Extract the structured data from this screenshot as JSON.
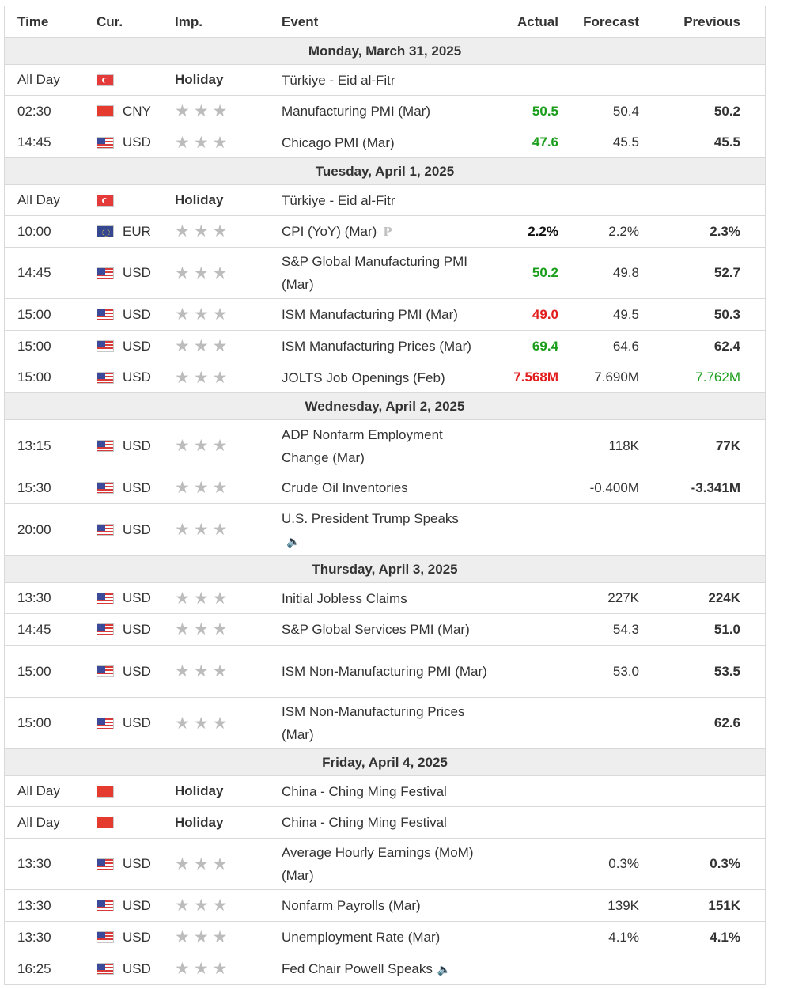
{
  "headers": {
    "time": "Time",
    "cur": "Cur.",
    "imp": "Imp.",
    "event": "Event",
    "actual": "Actual",
    "forecast": "Forecast",
    "previous": "Previous"
  },
  "days": [
    {
      "label": "Monday, March 31, 2025"
    },
    {
      "label": "Tuesday, April 1, 2025"
    },
    {
      "label": "Wednesday, April 2, 2025"
    },
    {
      "label": "Thursday, April 3, 2025"
    },
    {
      "label": "Friday, April 4, 2025"
    }
  ],
  "events": [
    {
      "time": "All Day",
      "flag": "tr",
      "cur": "",
      "holiday": "Holiday",
      "event": "Türkiye - Eid al-Fitr",
      "actual": "",
      "forecast": "",
      "previous": ""
    },
    {
      "time": "02:30",
      "flag": "cn",
      "cur": "CNY",
      "event": "Manufacturing PMI (Mar)",
      "actual": "50.5",
      "actual_color": "green",
      "forecast": "50.4",
      "previous": "50.2"
    },
    {
      "time": "14:45",
      "flag": "us",
      "cur": "USD",
      "event": "Chicago PMI (Mar)",
      "actual": "47.6",
      "actual_color": "green",
      "forecast": "45.5",
      "previous": "45.5"
    },
    {
      "time": "All Day",
      "flag": "tr",
      "cur": "",
      "holiday": "Holiday",
      "event": "Türkiye - Eid al-Fitr",
      "actual": "",
      "forecast": "",
      "previous": ""
    },
    {
      "time": "10:00",
      "flag": "eu",
      "cur": "EUR",
      "event": "CPI (YoY) (Mar)",
      "event_icon": "P",
      "actual": "2.2%",
      "actual_color": "black",
      "forecast": "2.2%",
      "previous": "2.3%"
    },
    {
      "time": "14:45",
      "flag": "us",
      "cur": "USD",
      "event": "S&P Global Manufacturing PMI (Mar)",
      "actual": "50.2",
      "actual_color": "green",
      "forecast": "49.8",
      "previous": "52.7"
    },
    {
      "time": "15:00",
      "flag": "us",
      "cur": "USD",
      "event": "ISM Manufacturing PMI (Mar)",
      "actual": "49.0",
      "actual_color": "red",
      "forecast": "49.5",
      "previous": "50.3"
    },
    {
      "time": "15:00",
      "flag": "us",
      "cur": "USD",
      "event": "ISM Manufacturing Prices (Mar)",
      "actual": "69.4",
      "actual_color": "green",
      "forecast": "64.6",
      "previous": "62.4"
    },
    {
      "time": "15:00",
      "flag": "us",
      "cur": "USD",
      "event": "JOLTS Job Openings (Feb)",
      "actual": "7.568M",
      "actual_color": "red",
      "forecast": "7.690M",
      "previous": "7.762M",
      "previous_color": "green"
    },
    {
      "time": "13:15",
      "flag": "us",
      "cur": "USD",
      "event": "ADP Nonfarm Employment Change (Mar)",
      "actual": "",
      "forecast": "118K",
      "previous": "77K"
    },
    {
      "time": "15:30",
      "flag": "us",
      "cur": "USD",
      "event": "Crude Oil Inventories",
      "actual": "",
      "forecast": "-0.400M",
      "previous": "-3.341M"
    },
    {
      "time": "20:00",
      "flag": "us",
      "cur": "USD",
      "event": "U.S. President Trump Speaks",
      "speaker_icon": "🔈",
      "actual": "",
      "forecast": "",
      "previous": ""
    },
    {
      "time": "13:30",
      "flag": "us",
      "cur": "USD",
      "event": "Initial Jobless Claims",
      "actual": "",
      "forecast": "227K",
      "previous": "224K"
    },
    {
      "time": "14:45",
      "flag": "us",
      "cur": "USD",
      "event": "S&P Global Services PMI (Mar)",
      "actual": "",
      "forecast": "54.3",
      "previous": "51.0"
    },
    {
      "time": "15:00",
      "flag": "us",
      "cur": "USD",
      "event": "ISM Non-Manufacturing PMI (Mar)",
      "actual": "",
      "forecast": "53.0",
      "previous": "53.5"
    },
    {
      "time": "15:00",
      "flag": "us",
      "cur": "USD",
      "event": "ISM Non-Manufacturing Prices (Mar)",
      "actual": "",
      "forecast": "",
      "previous": "62.6"
    },
    {
      "time": "All Day",
      "flag": "cn",
      "cur": "",
      "holiday": "Holiday",
      "event": "China - Ching Ming Festival",
      "actual": "",
      "forecast": "",
      "previous": ""
    },
    {
      "time": "All Day",
      "flag": "cn",
      "cur": "",
      "holiday": "Holiday",
      "event": "China - Ching Ming Festival",
      "actual": "",
      "forecast": "",
      "previous": ""
    },
    {
      "time": "13:30",
      "flag": "us",
      "cur": "USD",
      "event": "Average Hourly Earnings (MoM) (Mar)",
      "actual": "",
      "forecast": "0.3%",
      "previous": "0.3%"
    },
    {
      "time": "13:30",
      "flag": "us",
      "cur": "USD",
      "event": "Nonfarm Payrolls (Mar)",
      "actual": "",
      "forecast": "139K",
      "previous": "151K"
    },
    {
      "time": "13:30",
      "flag": "us",
      "cur": "USD",
      "event": "Unemployment Rate (Mar)",
      "actual": "",
      "forecast": "4.1%",
      "previous": "4.1%"
    },
    {
      "time": "16:25",
      "flag": "us",
      "cur": "USD",
      "event": "Fed Chair Powell Speaks",
      "speaker_icon": "🔈",
      "actual": "",
      "forecast": "",
      "previous": ""
    }
  ],
  "importance": {
    "star_glyph": "★",
    "icon_name": "star-icon"
  }
}
